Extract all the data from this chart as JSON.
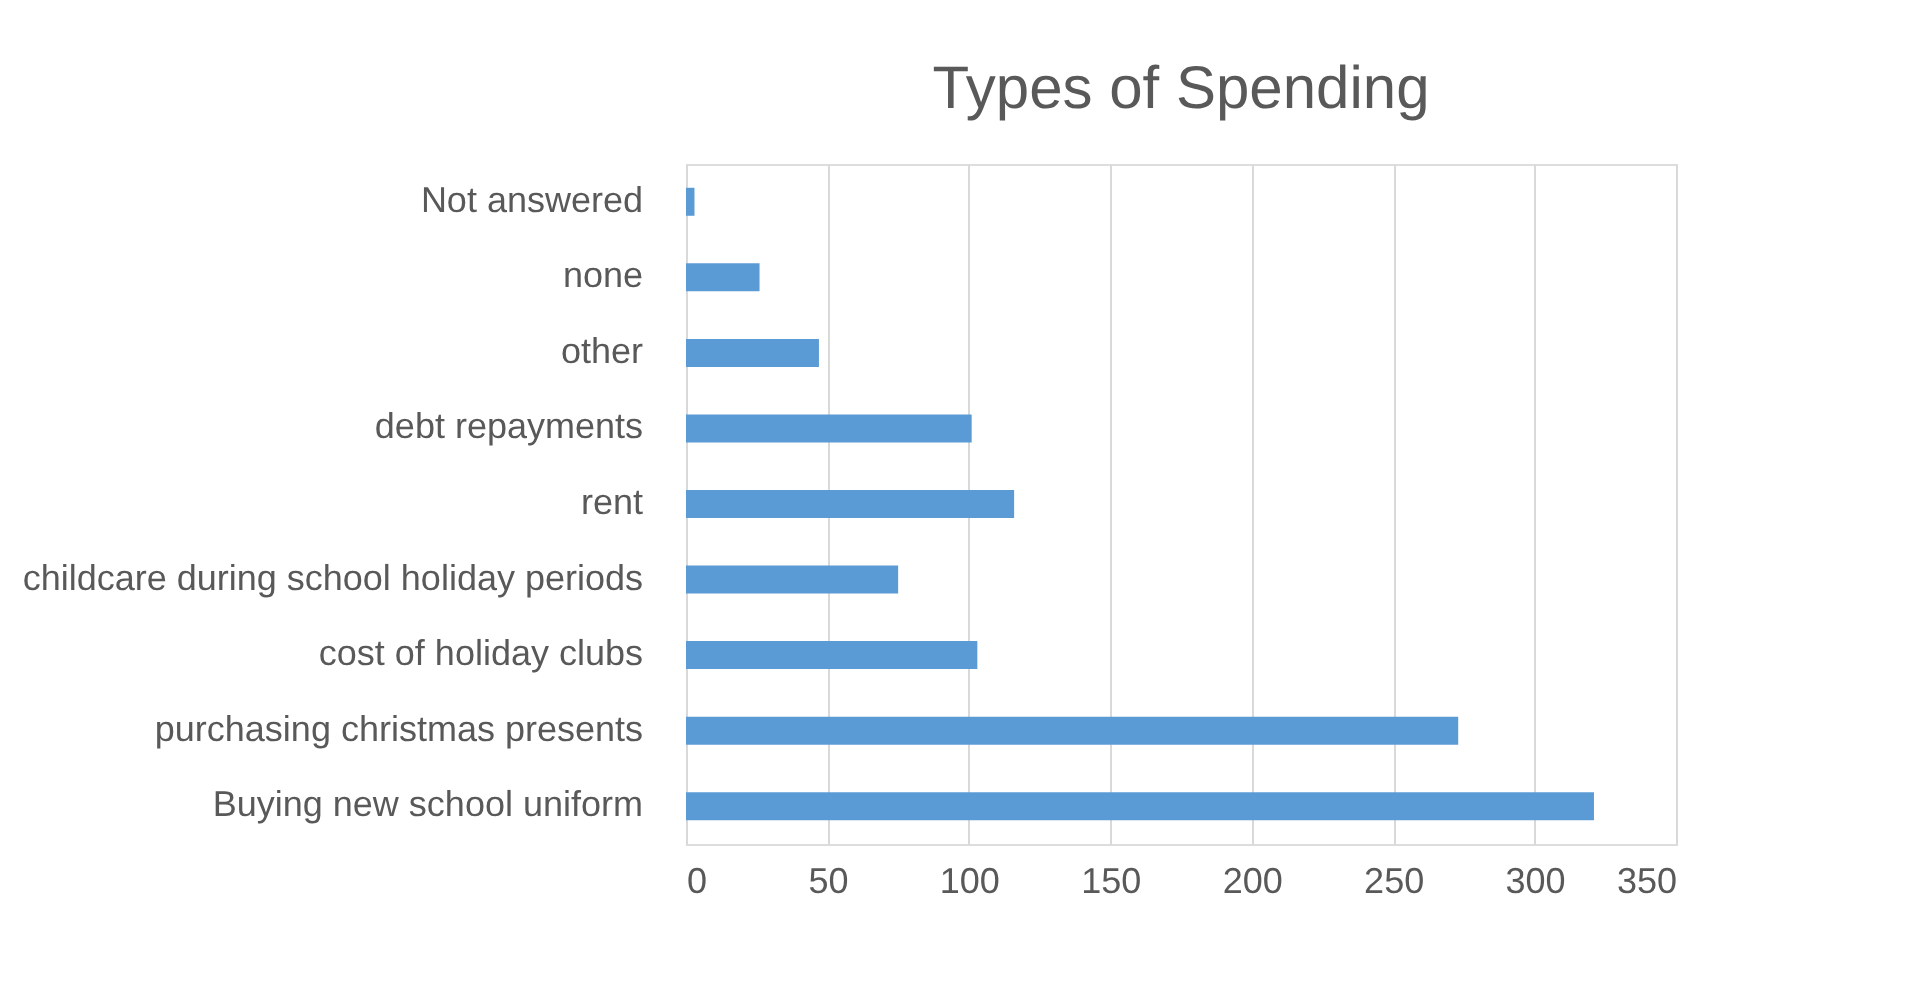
{
  "chart_data": {
    "type": "bar",
    "orientation": "horizontal",
    "title": "Types of Spending",
    "categories": [
      "Not answered",
      "none",
      "other",
      "debt repayments",
      "rent",
      "childcare during school holiday periods",
      "cost of holiday clubs",
      "purchasing christmas presents",
      "Buying new school uniform"
    ],
    "values": [
      3,
      26,
      47,
      101,
      116,
      75,
      103,
      273,
      321
    ],
    "color": "#5b9bd5",
    "xlim": [
      0,
      350
    ],
    "xticks": [
      0,
      50,
      100,
      150,
      200,
      250,
      300,
      350
    ],
    "grid": "x"
  }
}
